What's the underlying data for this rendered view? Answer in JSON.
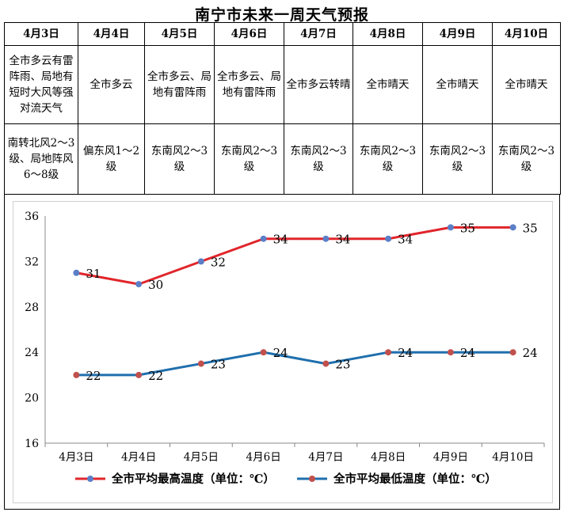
{
  "title": "南宁市未来一周天气预报",
  "forecast": {
    "days": [
      {
        "date": "4月3日",
        "weather": "全市多云有雷阵雨、局地有短时大风等强对流天气",
        "wind": "南转北风2～3级、局地阵风6～8级"
      },
      {
        "date": "4月4日",
        "weather": "全市多云",
        "wind": "偏东风1～2级"
      },
      {
        "date": "4月5日",
        "weather": "全市多云、局地有雷阵雨",
        "wind": "东南风2～3级"
      },
      {
        "date": "4月6日",
        "weather": "全市多云、局地有雷阵雨",
        "wind": "东南风2～3级"
      },
      {
        "date": "4月7日",
        "weather": "全市多云转晴",
        "wind": "东南风2～3级"
      },
      {
        "date": "4月8日",
        "weather": "全市晴天",
        "wind": "东南风2～3级"
      },
      {
        "date": "4月9日",
        "weather": "全市晴天",
        "wind": "东南风2～3级"
      },
      {
        "date": "4月10日",
        "weather": "全市晴天",
        "wind": "东南风2～3级"
      }
    ]
  },
  "chart_data": {
    "type": "line",
    "categories": [
      "4月3日",
      "4月4日",
      "4月5日",
      "4月6日",
      "4月7日",
      "4月8日",
      "4月9日",
      "4月10日"
    ],
    "series": [
      {
        "name": "全市平均最高温度（单位：℃）",
        "values": [
          31,
          30,
          32,
          34,
          34,
          34,
          35,
          35
        ],
        "color": "#e0262b",
        "marker": "#5b7fc7"
      },
      {
        "name": "全市平均最低温度（单位：℃）",
        "values": [
          22,
          22,
          23,
          24,
          23,
          24,
          24,
          24
        ],
        "color": "#1f6fad",
        "marker": "#c0504d"
      }
    ],
    "ylim": [
      16,
      36
    ],
    "yticks": [
      16,
      20,
      24,
      28,
      32,
      36
    ],
    "grid": false,
    "legend": "bottom",
    "xlabel": "",
    "ylabel": ""
  }
}
